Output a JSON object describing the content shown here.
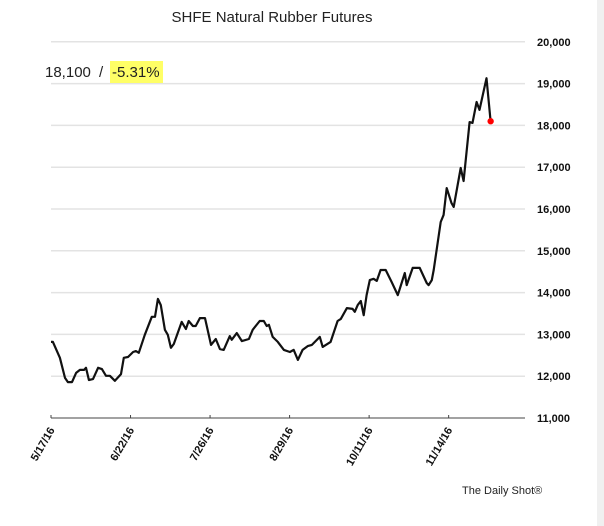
{
  "chart_data": {
    "type": "line",
    "title": "SHFE Natural Rubber Futures",
    "xlabel": "",
    "ylabel": "",
    "ylim": [
      11000,
      20000
    ],
    "xlim": [
      0,
      149
    ],
    "yticks": [
      11000,
      12000,
      13000,
      14000,
      15000,
      16000,
      17000,
      18000,
      19000,
      20000
    ],
    "ytick_labels": [
      "11,000",
      "12,000",
      "13,000",
      "14,000",
      "15,000",
      "16,000",
      "17,000",
      "18,000",
      "19,000",
      "20,000"
    ],
    "xticks": [
      0,
      25,
      50,
      75,
      100,
      125
    ],
    "xtick_labels": [
      "5/17/16",
      "6/22/16",
      "7/26/16",
      "8/29/16",
      "10/11/16",
      "11/14/16"
    ],
    "x_unit": "trading-day index",
    "grid": true,
    "line_color": "#111111",
    "last_point_color": "#ff0000",
    "annotation": {
      "value": "18,100",
      "separator": "/",
      "change": "-5.31%",
      "highlight_color": "#ffff66"
    },
    "source": "The Daily Shot®",
    "series": [
      {
        "name": "SHFE Natural Rubber",
        "x": [
          0,
          0.6,
          2.8,
          4.4,
          5.3,
          6.6,
          7.9,
          9.1,
          10.4,
          11.0,
          11.9,
          13.2,
          14.8,
          16.0,
          17.3,
          18.5,
          20.1,
          22.0,
          22.9,
          24.2,
          25.8,
          26.7,
          27.6,
          29.5,
          31.7,
          32.7,
          33.6,
          34.5,
          35.8,
          36.7,
          37.7,
          38.6,
          41.1,
          42.4,
          43.3,
          44.6,
          45.5,
          46.8,
          48.4,
          50.3,
          51.8,
          53.1,
          54.3,
          56.2,
          56.8,
          58.4,
          60.0,
          62.2,
          63.4,
          65.6,
          66.9,
          67.8,
          68.5,
          69.7,
          71.3,
          73.2,
          75.1,
          76.3,
          77.6,
          79.1,
          80.7,
          82.0,
          84.5,
          85.4,
          87.9,
          90.1,
          91.1,
          93.0,
          94.8,
          95.5,
          96.4,
          97.4,
          98.3,
          99.2,
          100.2,
          101.4,
          102.4,
          103.6,
          105.2,
          107.1,
          109.0,
          111.2,
          111.8,
          113.7,
          115.9,
          118.1,
          118.7,
          119.7,
          120.3,
          122.5,
          123.4,
          124.4,
          125.9,
          126.6,
          128.8,
          129.7,
          131.6,
          132.5,
          133.8,
          134.7,
          136.9,
          138.2
        ],
        "values": [
          12820,
          12820,
          12440,
          11960,
          11860,
          11860,
          12080,
          12150,
          12150,
          12200,
          11910,
          11930,
          12200,
          12170,
          12010,
          12010,
          11890,
          12050,
          12440,
          12460,
          12580,
          12600,
          12560,
          12990,
          13420,
          13420,
          13850,
          13700,
          13110,
          12990,
          12680,
          12770,
          13300,
          13130,
          13320,
          13200,
          13200,
          13390,
          13390,
          12750,
          12890,
          12650,
          12630,
          12960,
          12870,
          13030,
          12840,
          12890,
          13110,
          13320,
          13320,
          13200,
          13230,
          12940,
          12820,
          12630,
          12580,
          12630,
          12390,
          12630,
          12720,
          12750,
          12940,
          12700,
          12820,
          13320,
          13370,
          13630,
          13610,
          13540,
          13700,
          13800,
          13460,
          13940,
          14300,
          14330,
          14280,
          14540,
          14540,
          14250,
          13940,
          14470,
          14180,
          14590,
          14590,
          14230,
          14180,
          14300,
          14540,
          15690,
          15860,
          16500,
          16140,
          16050,
          16980,
          16670,
          18080,
          18060,
          18560,
          18370,
          19130,
          18100
        ]
      }
    ]
  }
}
